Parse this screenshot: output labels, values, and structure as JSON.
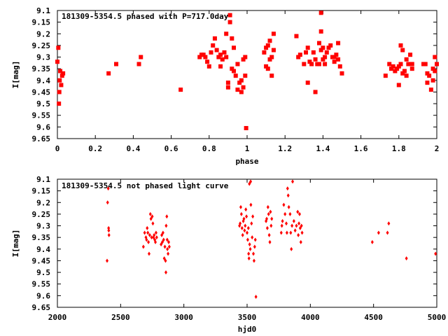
{
  "chart_data": [
    {
      "type": "scatter",
      "title": "181309-5354.5 phased with P=717.0day",
      "xlabel": "phase",
      "ylabel": "I[mag]",
      "xlim": [
        0,
        2
      ],
      "ylim": [
        9.65,
        9.1
      ],
      "y_inverted": true,
      "grid": false,
      "marker": "filled-square",
      "color": "#ff0000",
      "xticks": [
        "0",
        "0.2",
        "0.4",
        "0.6",
        "0.8",
        "1",
        "1.2",
        "1.4",
        "1.6",
        "1.8",
        "2"
      ],
      "xtick_values": [
        0,
        0.2,
        0.4,
        0.6,
        0.8,
        1.0,
        1.2,
        1.4,
        1.6,
        1.8,
        2.0
      ],
      "yticks": [
        "9.1",
        "9.15",
        "9.2",
        "9.25",
        "9.3",
        "9.35",
        "9.4",
        "9.45",
        "9.5",
        "9.55",
        "9.6",
        "9.65"
      ],
      "ytick_values": [
        9.1,
        9.15,
        9.2,
        9.25,
        9.3,
        9.35,
        9.4,
        9.45,
        9.5,
        9.55,
        9.6,
        9.65
      ],
      "points": [
        [
          0.0,
          9.32
        ],
        [
          0.005,
          9.26
        ],
        [
          0.008,
          9.5
        ],
        [
          0.01,
          9.45
        ],
        [
          0.012,
          9.4
        ],
        [
          0.015,
          9.36
        ],
        [
          0.02,
          9.42
        ],
        [
          0.025,
          9.38
        ],
        [
          0.03,
          9.37
        ],
        [
          0.27,
          9.37
        ],
        [
          0.31,
          9.33
        ],
        [
          0.43,
          9.33
        ],
        [
          0.44,
          9.3
        ],
        [
          0.65,
          9.44
        ],
        [
          0.75,
          9.3
        ],
        [
          0.76,
          9.29
        ],
        [
          0.77,
          9.29
        ],
        [
          0.78,
          9.3
        ],
        [
          0.79,
          9.32
        ],
        [
          0.8,
          9.34
        ],
        [
          0.81,
          9.28
        ],
        [
          0.82,
          9.25
        ],
        [
          0.83,
          9.22
        ],
        [
          0.84,
          9.27
        ],
        [
          0.85,
          9.3
        ],
        [
          0.86,
          9.29
        ],
        [
          0.86,
          9.34
        ],
        [
          0.87,
          9.31
        ],
        [
          0.88,
          9.28
        ],
        [
          0.89,
          9.3
        ],
        [
          0.89,
          9.2
        ],
        [
          0.9,
          9.41
        ],
        [
          0.9,
          9.43
        ],
        [
          0.91,
          9.15
        ],
        [
          0.91,
          9.12
        ],
        [
          0.92,
          9.22
        ],
        [
          0.92,
          9.35
        ],
        [
          0.93,
          9.36
        ],
        [
          0.93,
          9.26
        ],
        [
          0.94,
          9.38
        ],
        [
          0.95,
          9.33
        ],
        [
          0.95,
          9.44
        ],
        [
          0.96,
          9.41
        ],
        [
          0.97,
          9.45
        ],
        [
          0.97,
          9.4
        ],
        [
          0.98,
          9.43
        ],
        [
          0.98,
          9.31
        ],
        [
          0.99,
          9.3
        ],
        [
          0.99,
          9.38
        ],
        [
          0.995,
          9.605
        ],
        [
          1.09,
          9.28
        ],
        [
          1.1,
          9.26
        ],
        [
          1.1,
          9.34
        ],
        [
          1.11,
          9.25
        ],
        [
          1.11,
          9.35
        ],
        [
          1.12,
          9.23
        ],
        [
          1.12,
          9.31
        ],
        [
          1.13,
          9.3
        ],
        [
          1.13,
          9.38
        ],
        [
          1.14,
          9.27
        ],
        [
          1.14,
          9.2
        ],
        [
          1.26,
          9.21
        ],
        [
          1.27,
          9.3
        ],
        [
          1.28,
          9.29
        ],
        [
          1.3,
          9.33
        ],
        [
          1.31,
          9.28
        ],
        [
          1.32,
          9.26
        ],
        [
          1.32,
          9.41
        ],
        [
          1.33,
          9.32
        ],
        [
          1.34,
          9.33
        ],
        [
          1.35,
          9.28
        ],
        [
          1.36,
          9.31
        ],
        [
          1.36,
          9.45
        ],
        [
          1.37,
          9.33
        ],
        [
          1.38,
          9.24
        ],
        [
          1.38,
          9.33
        ],
        [
          1.39,
          9.27
        ],
        [
          1.39,
          9.19
        ],
        [
          1.39,
          9.11
        ],
        [
          1.4,
          9.31
        ],
        [
          1.4,
          9.26
        ],
        [
          1.41,
          9.3
        ],
        [
          1.41,
          9.33
        ],
        [
          1.42,
          9.28
        ],
        [
          1.43,
          9.26
        ],
        [
          1.44,
          9.25
        ],
        [
          1.45,
          9.3
        ],
        [
          1.46,
          9.3
        ],
        [
          1.46,
          9.32
        ],
        [
          1.47,
          9.29
        ],
        [
          1.48,
          9.31
        ],
        [
          1.48,
          9.24
        ],
        [
          1.49,
          9.34
        ],
        [
          1.5,
          9.37
        ],
        [
          1.73,
          9.38
        ],
        [
          1.75,
          9.33
        ],
        [
          1.76,
          9.35
        ],
        [
          1.77,
          9.34
        ],
        [
          1.78,
          9.36
        ],
        [
          1.79,
          9.35
        ],
        [
          1.8,
          9.34
        ],
        [
          1.8,
          9.42
        ],
        [
          1.81,
          9.33
        ],
        [
          1.81,
          9.25
        ],
        [
          1.82,
          9.37
        ],
        [
          1.82,
          9.27
        ],
        [
          1.83,
          9.36
        ],
        [
          1.84,
          9.31
        ],
        [
          1.84,
          9.38
        ],
        [
          1.85,
          9.33
        ],
        [
          1.86,
          9.29
        ],
        [
          1.87,
          9.35
        ],
        [
          1.87,
          9.33
        ],
        [
          1.93,
          9.33
        ],
        [
          1.94,
          9.33
        ],
        [
          1.95,
          9.37
        ],
        [
          1.95,
          9.41
        ],
        [
          1.96,
          9.38
        ],
        [
          1.97,
          9.44
        ],
        [
          1.98,
          9.35
        ],
        [
          1.98,
          9.4
        ],
        [
          1.99,
          9.36
        ],
        [
          1.99,
          9.3
        ],
        [
          2.0,
          9.33
        ]
      ]
    },
    {
      "type": "scatter",
      "title": "181309-5354.5 not phased light curve",
      "xlabel": "hjd0",
      "ylabel": "I[mag]",
      "xlim": [
        2000,
        5000
      ],
      "ylim": [
        9.65,
        9.1
      ],
      "y_inverted": true,
      "grid": false,
      "marker": "filled-diamond",
      "color": "#ff0000",
      "xticks": [
        "2000",
        "2500",
        "3000",
        "3500",
        "4000",
        "4500",
        "5000"
      ],
      "xtick_values": [
        2000,
        2500,
        3000,
        3500,
        4000,
        4500,
        5000
      ],
      "yticks": [
        "9.1",
        "9.15",
        "9.2",
        "9.25",
        "9.3",
        "9.35",
        "9.4",
        "9.45",
        "9.5",
        "9.55",
        "9.6",
        "9.65"
      ],
      "ytick_values": [
        9.1,
        9.15,
        9.2,
        9.25,
        9.3,
        9.35,
        9.4,
        9.45,
        9.5,
        9.55,
        9.6,
        9.65
      ],
      "points": [
        [
          2393,
          9.45
        ],
        [
          2397,
          9.2
        ],
        [
          2402,
          9.14
        ],
        [
          2405,
          9.31
        ],
        [
          2406,
          9.32
        ],
        [
          2408,
          9.34
        ],
        [
          2680,
          9.39
        ],
        [
          2690,
          9.33
        ],
        [
          2700,
          9.35
        ],
        [
          2705,
          9.36
        ],
        [
          2710,
          9.31
        ],
        [
          2715,
          9.33
        ],
        [
          2720,
          9.37
        ],
        [
          2725,
          9.42
        ],
        [
          2730,
          9.34
        ],
        [
          2735,
          9.25
        ],
        [
          2740,
          9.27
        ],
        [
          2745,
          9.35
        ],
        [
          2750,
          9.26
        ],
        [
          2755,
          9.29
        ],
        [
          2760,
          9.35
        ],
        [
          2765,
          9.34
        ],
        [
          2770,
          9.36
        ],
        [
          2775,
          9.37
        ],
        [
          2780,
          9.33
        ],
        [
          2785,
          9.35
        ],
        [
          2820,
          9.38
        ],
        [
          2825,
          9.34
        ],
        [
          2830,
          9.37
        ],
        [
          2835,
          9.33
        ],
        [
          2840,
          9.36
        ],
        [
          2845,
          9.44
        ],
        [
          2850,
          9.39
        ],
        [
          2855,
          9.45
        ],
        [
          2858,
          9.5
        ],
        [
          2860,
          9.3
        ],
        [
          2865,
          9.26
        ],
        [
          2868,
          9.36
        ],
        [
          2870,
          9.4
        ],
        [
          2875,
          9.42
        ],
        [
          2880,
          9.37
        ],
        [
          2885,
          9.39
        ],
        [
          3440,
          9.3
        ],
        [
          3445,
          9.29
        ],
        [
          3450,
          9.22
        ],
        [
          3455,
          9.25
        ],
        [
          3460,
          9.31
        ],
        [
          3465,
          9.34
        ],
        [
          3470,
          9.28
        ],
        [
          3475,
          9.27
        ],
        [
          3480,
          9.32
        ],
        [
          3485,
          9.3
        ],
        [
          3490,
          9.23
        ],
        [
          3495,
          9.26
        ],
        [
          3500,
          9.33
        ],
        [
          3505,
          9.36
        ],
        [
          3510,
          9.31
        ],
        [
          3512,
          9.42
        ],
        [
          3515,
          9.44
        ],
        [
          3518,
          9.12
        ],
        [
          3520,
          9.38
        ],
        [
          3525,
          9.4
        ],
        [
          3528,
          9.11
        ],
        [
          3530,
          9.21
        ],
        [
          3535,
          9.29
        ],
        [
          3540,
          9.35
        ],
        [
          3545,
          9.26
        ],
        [
          3550,
          9.42
        ],
        [
          3555,
          9.45
        ],
        [
          3560,
          9.39
        ],
        [
          3565,
          9.36
        ],
        [
          3570,
          9.605
        ],
        [
          3650,
          9.28
        ],
        [
          3655,
          9.27
        ],
        [
          3660,
          9.31
        ],
        [
          3665,
          9.22
        ],
        [
          3670,
          9.25
        ],
        [
          3675,
          9.34
        ],
        [
          3680,
          9.37
        ],
        [
          3685,
          9.24
        ],
        [
          3690,
          9.3
        ],
        [
          3695,
          9.27
        ],
        [
          3770,
          9.33
        ],
        [
          3775,
          9.3
        ],
        [
          3780,
          9.28
        ],
        [
          3790,
          9.21
        ],
        [
          3800,
          9.25
        ],
        [
          3810,
          9.29
        ],
        [
          3815,
          9.33
        ],
        [
          3820,
          9.14
        ],
        [
          3825,
          9.17
        ],
        [
          3830,
          9.22
        ],
        [
          3840,
          9.25
        ],
        [
          3845,
          9.33
        ],
        [
          3850,
          9.4
        ],
        [
          3855,
          9.3
        ],
        [
          3860,
          9.11
        ],
        [
          3870,
          9.28
        ],
        [
          3880,
          9.32
        ],
        [
          3890,
          9.3
        ],
        [
          3900,
          9.24
        ],
        [
          3905,
          9.34
        ],
        [
          3910,
          9.29
        ],
        [
          3915,
          9.25
        ],
        [
          3920,
          9.31
        ],
        [
          3925,
          9.37
        ],
        [
          3930,
          9.3
        ],
        [
          3935,
          9.33
        ],
        [
          4490,
          9.37
        ],
        [
          4540,
          9.33
        ],
        [
          4610,
          9.33
        ],
        [
          4620,
          9.29
        ],
        [
          4760,
          9.44
        ],
        [
          4990,
          9.42
        ]
      ]
    }
  ]
}
